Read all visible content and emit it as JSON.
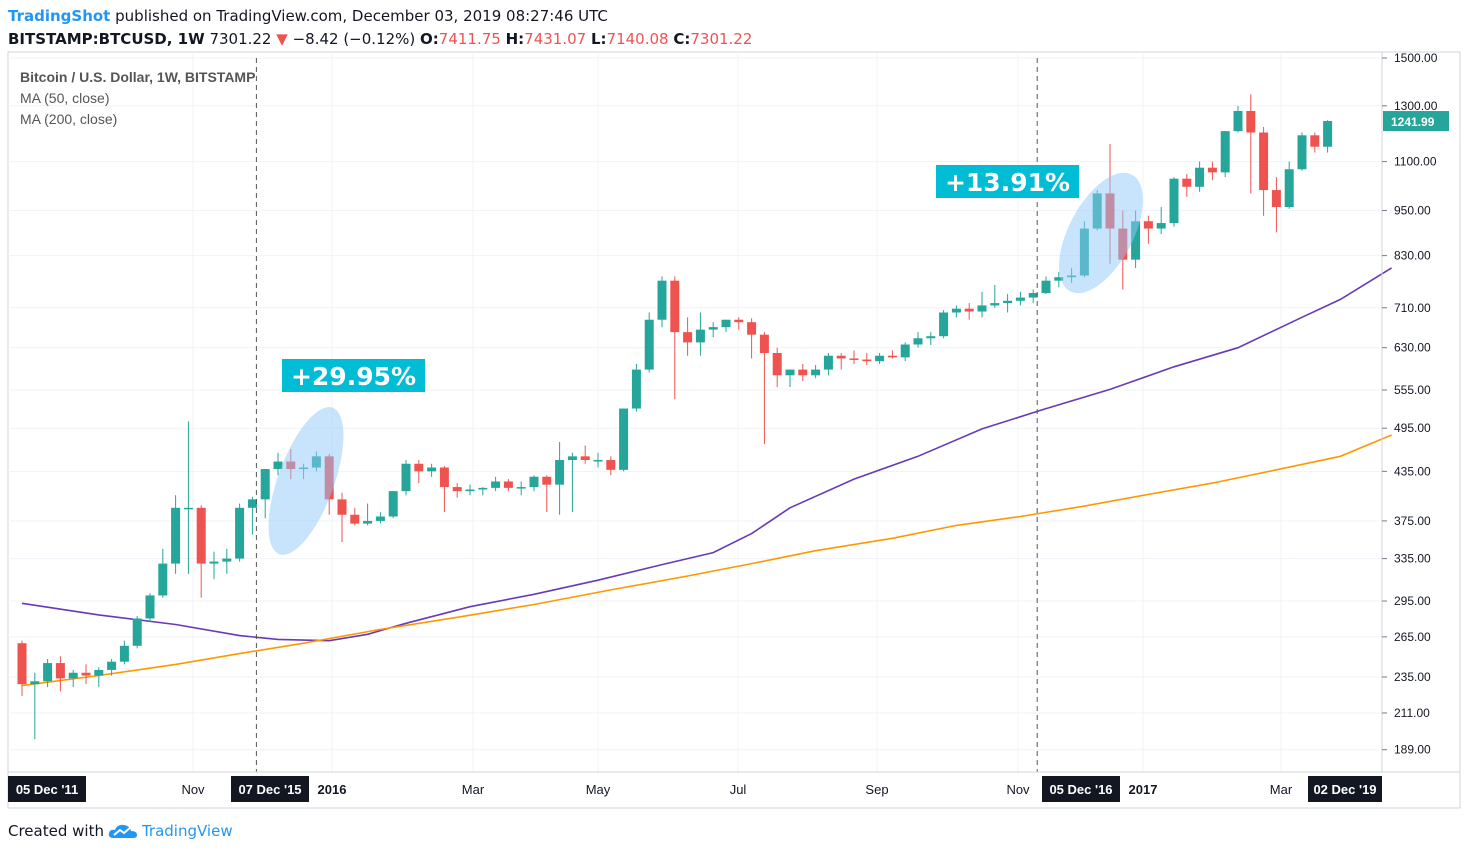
{
  "header": {
    "brand": "TradingShot",
    "published": "published on TradingView.com, December 03, 2019 08:27:46 UTC",
    "symbol": "BITSTAMP:BTCUSD, 1W",
    "last": "7301.22",
    "change": "−8.42 (−0.12%)",
    "o_label": "O:",
    "o_value": "7411.75",
    "h_label": "H:",
    "h_value": "7431.07",
    "l_label": "L:",
    "l_value": "7140.08",
    "c_label": "C:",
    "c_value": "7301.22"
  },
  "legend": {
    "title": "Bitcoin / U.S. Dollar, 1W, BITSTAMP",
    "ma50": "MA (50, close)",
    "ma200": "MA (200, close)"
  },
  "footer": {
    "created": "Created with",
    "brand": "TradingView"
  },
  "colors": {
    "up": "#26a69a",
    "down": "#ef5350",
    "ma50": "#673ab7",
    "ma200": "#ff9800",
    "annotation_bg": "#00bcd4",
    "ellipse": "#90caf9",
    "grid": "#f0f3fa",
    "axis_text": "#131722",
    "dark_label": "#131722"
  },
  "chart_data": {
    "type": "candlestick",
    "scale": "log",
    "y_ticks": [
      "189.00",
      "211.00",
      "235.00",
      "265.00",
      "295.00",
      "335.00",
      "375.00",
      "435.00",
      "495.00",
      "555.00",
      "630.00",
      "710.00",
      "830.00",
      "950.00",
      "1100.00",
      "1300.00",
      "1500.00"
    ],
    "x_ticks": [
      {
        "label": "05 Dec '11",
        "dark": true
      },
      {
        "label": "Nov",
        "dark": false
      },
      {
        "label": "07 Dec '15",
        "dark": true
      },
      {
        "label": "2016",
        "dark": false,
        "bold": true
      },
      {
        "label": "Mar",
        "dark": false
      },
      {
        "label": "May",
        "dark": false
      },
      {
        "label": "Jul",
        "dark": false
      },
      {
        "label": "Sep",
        "dark": false
      },
      {
        "label": "Nov",
        "dark": false
      },
      {
        "label": "05 Dec '16",
        "dark": true
      },
      {
        "label": "2017",
        "dark": false,
        "bold": true
      },
      {
        "label": "Mar",
        "dark": false
      },
      {
        "label": "02 Dec '19",
        "dark": true
      }
    ],
    "last_price_label": "1241.99",
    "candles": [
      [
        260,
        262,
        222,
        230
      ],
      [
        230,
        238,
        195,
        232
      ],
      [
        232,
        248,
        228,
        245
      ],
      [
        245,
        250,
        225,
        234
      ],
      [
        234,
        240,
        228,
        238
      ],
      [
        238,
        244,
        230,
        236
      ],
      [
        236,
        242,
        228,
        240
      ],
      [
        240,
        248,
        236,
        246
      ],
      [
        246,
        262,
        244,
        258
      ],
      [
        258,
        282,
        256,
        280
      ],
      [
        280,
        302,
        277,
        300
      ],
      [
        300,
        345,
        298,
        330
      ],
      [
        330,
        405,
        320,
        390
      ],
      [
        390,
        505,
        320,
        390
      ],
      [
        390,
        393,
        298,
        330
      ],
      [
        330,
        342,
        315,
        332
      ],
      [
        332,
        345,
        320,
        335
      ],
      [
        335,
        395,
        332,
        390
      ],
      [
        390,
        403,
        360,
        400
      ],
      [
        400,
        438,
        378,
        438
      ],
      [
        438,
        460,
        430,
        448
      ],
      [
        448,
        465,
        425,
        438
      ],
      [
        438,
        445,
        425,
        440
      ],
      [
        440,
        462,
        435,
        455
      ],
      [
        455,
        458,
        382,
        400
      ],
      [
        400,
        408,
        352,
        382
      ],
      [
        382,
        390,
        370,
        372
      ],
      [
        372,
        395,
        370,
        375
      ],
      [
        375,
        385,
        372,
        380
      ],
      [
        380,
        410,
        378,
        410
      ],
      [
        410,
        450,
        405,
        445
      ],
      [
        445,
        450,
        420,
        435
      ],
      [
        435,
        445,
        428,
        440
      ],
      [
        440,
        442,
        385,
        415
      ],
      [
        415,
        420,
        402,
        410
      ],
      [
        410,
        418,
        405,
        412
      ],
      [
        412,
        415,
        405,
        414
      ],
      [
        414,
        428,
        410,
        422
      ],
      [
        422,
        425,
        410,
        414
      ],
      [
        414,
        422,
        405,
        415
      ],
      [
        415,
        430,
        410,
        428
      ],
      [
        428,
        430,
        385,
        418
      ],
      [
        418,
        475,
        382,
        450
      ],
      [
        450,
        460,
        385,
        455
      ],
      [
        455,
        470,
        445,
        450
      ],
      [
        450,
        460,
        440,
        450
      ],
      [
        450,
        455,
        430,
        437
      ],
      [
        437,
        525,
        435,
        525
      ],
      [
        525,
        600,
        520,
        590
      ],
      [
        590,
        700,
        585,
        685
      ],
      [
        685,
        780,
        670,
        770
      ],
      [
        770,
        780,
        540,
        660
      ],
      [
        660,
        690,
        615,
        640
      ],
      [
        640,
        700,
        615,
        665
      ],
      [
        665,
        680,
        650,
        670
      ],
      [
        670,
        685,
        660,
        685
      ],
      [
        685,
        690,
        665,
        680
      ],
      [
        680,
        688,
        610,
        655
      ],
      [
        655,
        660,
        472,
        620
      ],
      [
        620,
        630,
        560,
        580
      ],
      [
        580,
        590,
        560,
        590
      ],
      [
        590,
        600,
        570,
        580
      ],
      [
        580,
        598,
        575,
        590
      ],
      [
        590,
        620,
        580,
        615
      ],
      [
        615,
        620,
        590,
        610
      ],
      [
        610,
        625,
        600,
        608
      ],
      [
        608,
        620,
        598,
        605
      ],
      [
        605,
        620,
        600,
        615
      ],
      [
        615,
        625,
        610,
        612
      ],
      [
        612,
        640,
        605,
        636
      ],
      [
        636,
        660,
        630,
        648
      ],
      [
        648,
        660,
        635,
        652
      ],
      [
        652,
        705,
        648,
        700
      ],
      [
        700,
        715,
        690,
        708
      ],
      [
        708,
        720,
        685,
        702
      ],
      [
        702,
        745,
        690,
        715
      ],
      [
        715,
        760,
        710,
        720
      ],
      [
        720,
        740,
        700,
        725
      ],
      [
        725,
        745,
        715,
        732
      ],
      [
        732,
        750,
        720,
        742
      ],
      [
        742,
        780,
        740,
        770
      ],
      [
        770,
        790,
        755,
        778
      ],
      [
        778,
        800,
        765,
        782
      ],
      [
        782,
        920,
        778,
        900
      ],
      [
        900,
        1010,
        895,
        1000
      ],
      [
        1000,
        1160,
        810,
        900
      ],
      [
        900,
        950,
        750,
        820
      ],
      [
        820,
        950,
        800,
        920
      ],
      [
        920,
        935,
        860,
        900
      ],
      [
        900,
        960,
        885,
        915
      ],
      [
        915,
        1050,
        905,
        1045
      ],
      [
        1045,
        1060,
        990,
        1020
      ],
      [
        1020,
        1100,
        1005,
        1080
      ],
      [
        1080,
        1100,
        1040,
        1065
      ],
      [
        1065,
        1205,
        1050,
        1205
      ],
      [
        1205,
        1300,
        1200,
        1280
      ],
      [
        1280,
        1345,
        1000,
        1200
      ],
      [
        1200,
        1220,
        935,
        1010
      ],
      [
        1010,
        1050,
        890,
        960
      ],
      [
        960,
        1100,
        955,
        1075
      ],
      [
        1075,
        1200,
        1070,
        1190
      ],
      [
        1190,
        1200,
        1130,
        1150
      ],
      [
        1150,
        1245,
        1130,
        1242
      ]
    ],
    "ma50": [
      [
        0,
        293
      ],
      [
        6,
        283
      ],
      [
        12,
        275
      ],
      [
        17,
        266
      ],
      [
        20,
        263
      ],
      [
        24,
        262
      ],
      [
        27,
        267
      ],
      [
        30,
        276
      ],
      [
        35,
        290
      ],
      [
        40,
        301
      ],
      [
        45,
        314
      ],
      [
        50,
        329
      ],
      [
        54,
        341
      ],
      [
        57,
        361
      ],
      [
        60,
        390
      ],
      [
        65,
        425
      ],
      [
        70,
        455
      ],
      [
        75,
        494
      ],
      [
        80,
        525
      ],
      [
        85,
        556
      ],
      [
        90,
        595
      ],
      [
        95,
        630
      ],
      [
        100,
        690
      ],
      [
        103,
        728
      ],
      [
        107,
        800
      ]
    ],
    "ma200": [
      [
        0,
        229
      ],
      [
        6,
        236
      ],
      [
        12,
        244
      ],
      [
        17,
        252
      ],
      [
        22,
        260
      ],
      [
        28,
        271
      ],
      [
        34,
        281
      ],
      [
        40,
        292
      ],
      [
        46,
        305
      ],
      [
        52,
        318
      ],
      [
        57,
        330
      ],
      [
        62,
        343
      ],
      [
        68,
        356
      ],
      [
        73,
        370
      ],
      [
        78,
        380
      ],
      [
        83,
        392
      ],
      [
        88,
        406
      ],
      [
        93,
        420
      ],
      [
        98,
        437
      ],
      [
        103,
        455
      ],
      [
        107,
        485
      ]
    ],
    "annotations": [
      {
        "text": "+29.95%",
        "anchor_candle": 21,
        "price": 615
      },
      {
        "text": "+13.91%",
        "anchor_candle": 80,
        "price": 1060
      }
    ],
    "dashed_lines_at_candles": [
      18,
      79
    ]
  }
}
